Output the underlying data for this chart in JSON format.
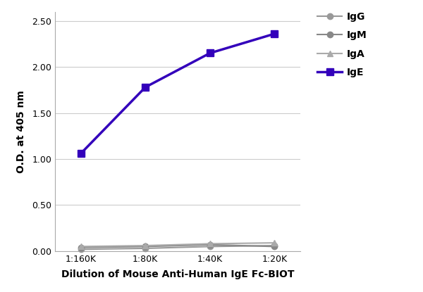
{
  "x_labels": [
    "1:160K",
    "1:80K",
    "1:40K",
    "1:20K"
  ],
  "x_values": [
    0,
    1,
    2,
    3
  ],
  "series": [
    {
      "name": "IgG",
      "color": "#999999",
      "marker": "o",
      "markersize": 6,
      "linewidth": 1.5,
      "values": [
        0.02,
        0.03,
        0.05,
        0.06
      ]
    },
    {
      "name": "IgM",
      "color": "#888888",
      "marker": "o",
      "markersize": 6,
      "linewidth": 1.5,
      "values": [
        0.04,
        0.05,
        0.07,
        0.05
      ]
    },
    {
      "name": "IgA",
      "color": "#aaaaaa",
      "marker": "^",
      "markersize": 6,
      "linewidth": 1.5,
      "values": [
        0.05,
        0.06,
        0.08,
        0.09
      ]
    },
    {
      "name": "IgE",
      "color": "#3300bb",
      "marker": "s",
      "markersize": 7,
      "linewidth": 2.5,
      "values": [
        1.06,
        1.78,
        2.15,
        2.36
      ]
    }
  ],
  "xlabel": "Dilution of Mouse Anti-Human IgE Fc-BIOT",
  "ylabel": "O.D. at 405 nm",
  "ylim": [
    0,
    2.6
  ],
  "yticks": [
    0.0,
    0.5,
    1.0,
    1.5,
    2.0,
    2.5
  ],
  "grid_color": "#cccccc",
  "background_color": "#ffffff",
  "xlabel_fontsize": 10,
  "ylabel_fontsize": 10,
  "tick_fontsize": 9,
  "legend_fontsize": 10
}
